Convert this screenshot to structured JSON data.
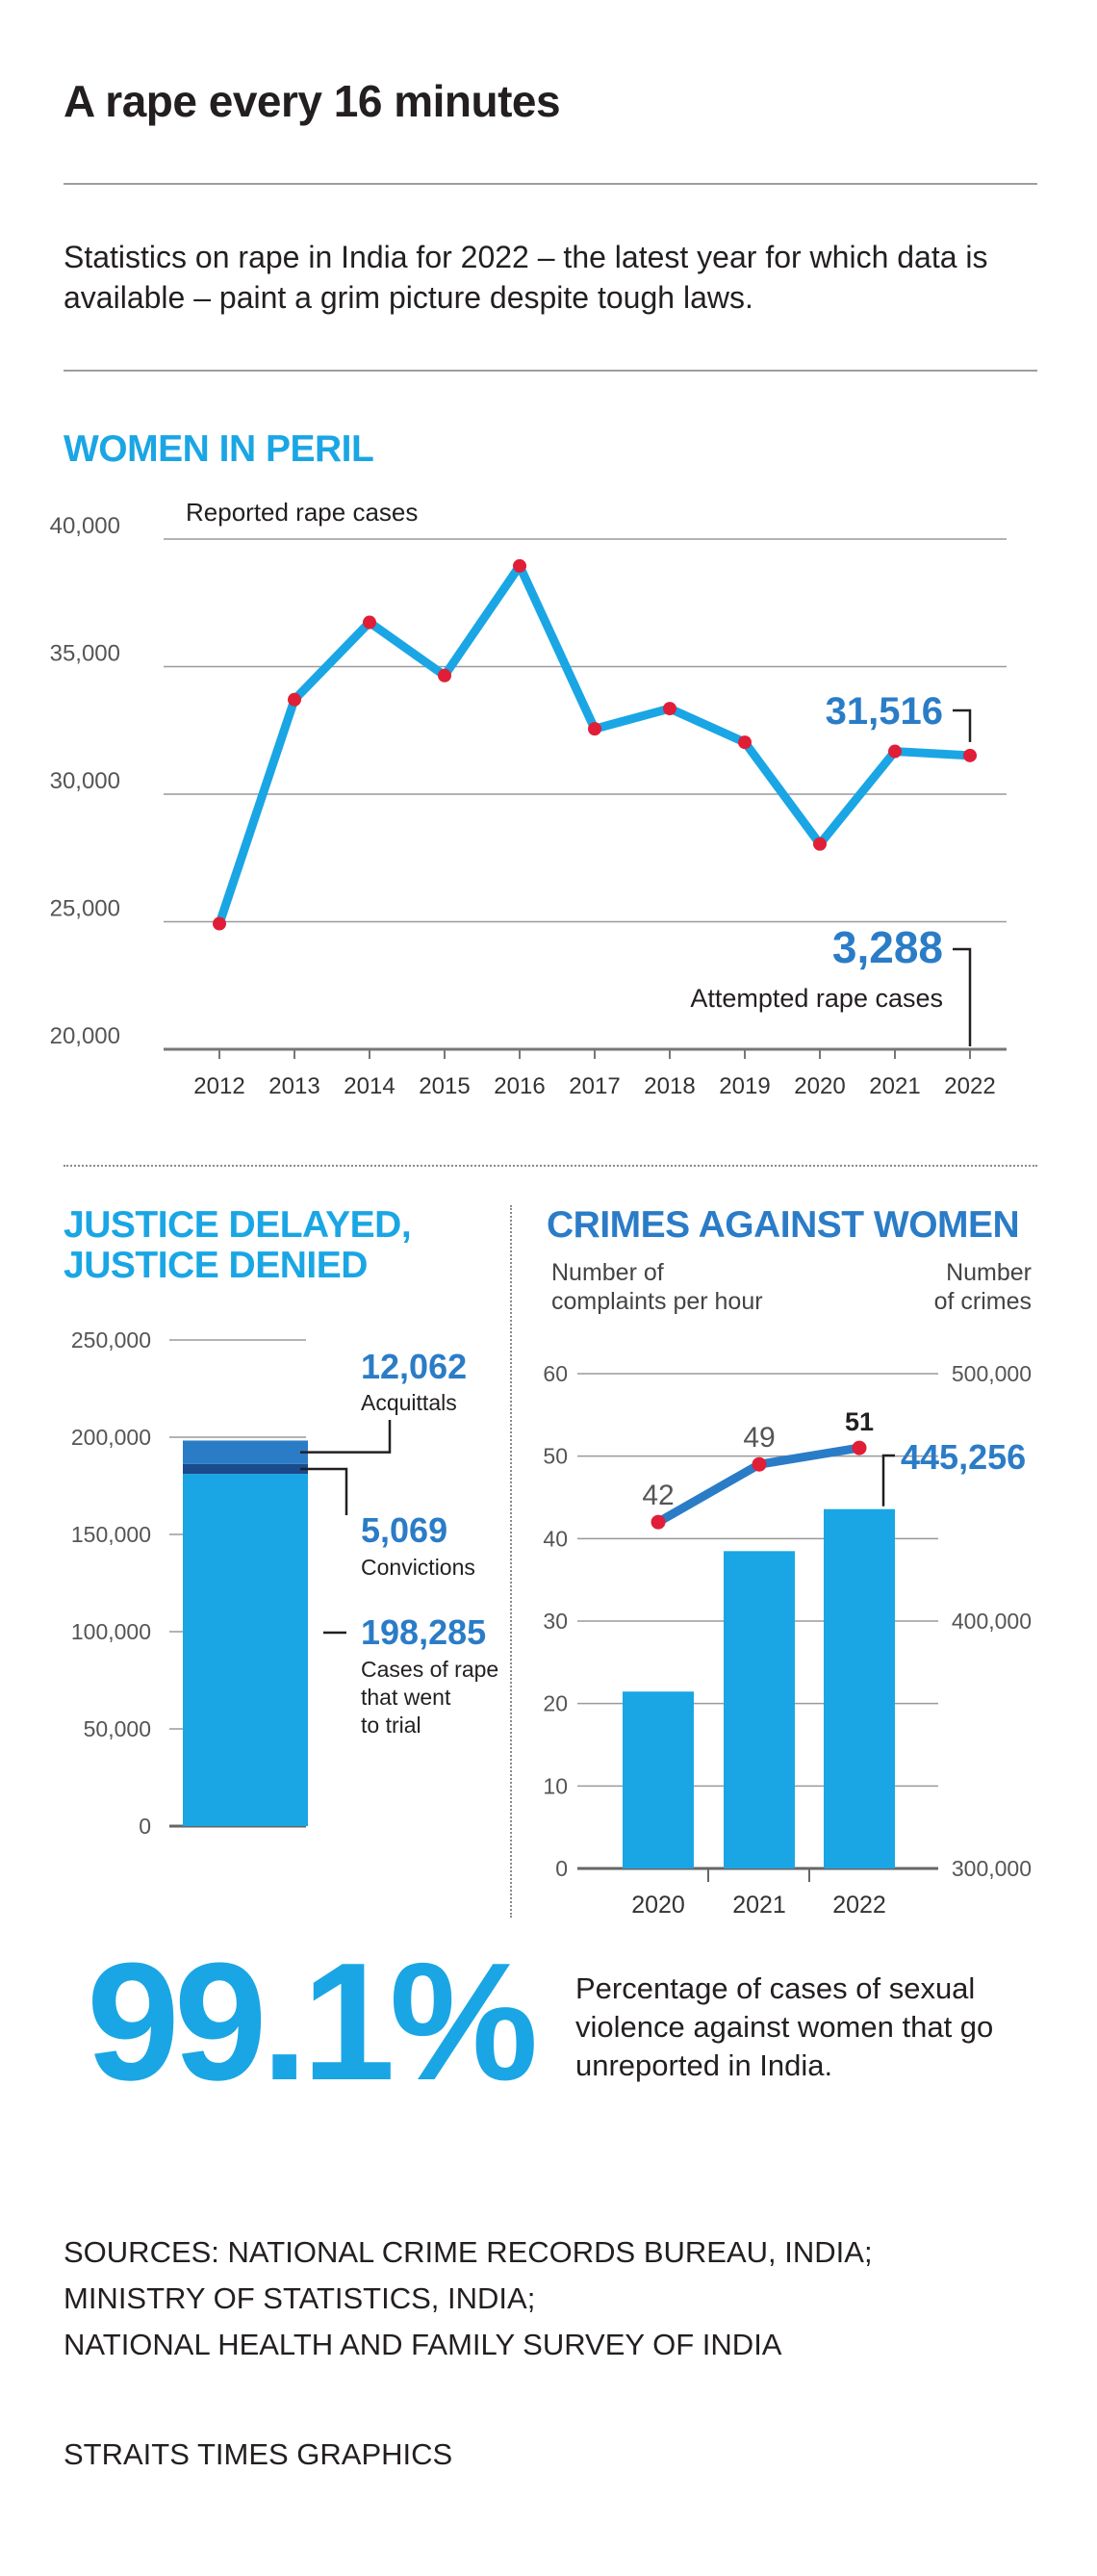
{
  "title": "A rape every 16 minutes",
  "intro": "Statistics on rape in India for 2022 – the latest year for which data is available – paint a grim picture despite tough laws.",
  "section1": {
    "heading": "WOMEN IN PERIL"
  },
  "section2": {
    "heading_line1": "JUSTICE DELAYED,",
    "heading_line2": "JUSTICE DENIED"
  },
  "section3": {
    "heading": "CRIMES AGAINST WOMEN"
  },
  "big_stat": {
    "value": "99.1%",
    "text": "Percentage of cases of sexual violence against women that go unreported in India."
  },
  "sources": [
    "SOURCES: NATIONAL CRIME RECORDS BUREAU, INDIA;",
    "MINISTRY OF STATISTICS, INDIA;",
    "NATIONAL HEALTH AND FAMILY SURVEY OF INDIA"
  ],
  "credit": "STRAITS TIMES GRAPHICS",
  "colors": {
    "accent": "#1aa6e4",
    "dark_blue": "#2b7cc7",
    "navy": "#1a4b8c",
    "point": "#e01e37",
    "text": "#231f20"
  },
  "chart_data": [
    {
      "type": "line",
      "title": "WOMEN IN PERIL",
      "ylabel": "Reported rape cases",
      "x": [
        "2012",
        "2013",
        "2014",
        "2015",
        "2016",
        "2017",
        "2018",
        "2019",
        "2020",
        "2021",
        "2022"
      ],
      "values": [
        24923,
        33707,
        36735,
        34651,
        38947,
        32559,
        33356,
        32033,
        28046,
        31677,
        31516
      ],
      "ylim": [
        20000,
        40000
      ],
      "yticks": [
        20000,
        25000,
        30000,
        35000,
        40000
      ],
      "ytick_labels": [
        "20,000",
        "25,000",
        "30,000",
        "35,000",
        "40,000"
      ],
      "annotations": [
        {
          "label": "31,516",
          "x": "2022"
        },
        {
          "label": "3,288",
          "sublabel": "Attempted rape cases",
          "x": "2022"
        }
      ]
    },
    {
      "type": "bar",
      "title": "JUSTICE DELAYED, JUSTICE DENIED",
      "stacked": true,
      "ylim": [
        0,
        250000
      ],
      "yticks": [
        0,
        50000,
        100000,
        150000,
        200000,
        250000
      ],
      "ytick_labels": [
        "0",
        "50,000",
        "100,000",
        "150,000",
        "200,000",
        "250,000"
      ],
      "series": [
        {
          "name": "Cases of rape that went to trial",
          "value": 198285,
          "label": "198,285"
        },
        {
          "name": "Acquittals",
          "value": 12062,
          "label": "12,062"
        },
        {
          "name": "Convictions",
          "value": 5069,
          "label": "5,069"
        }
      ],
      "label_lines": {
        "acquittals": [
          "Acquittals"
        ],
        "convictions": [
          "Convictions"
        ],
        "trial": [
          "Cases of rape",
          "that went",
          "to trial"
        ]
      }
    },
    {
      "type": "bar",
      "title": "CRIMES AGAINST WOMEN",
      "categories": [
        "2020",
        "2021",
        "2022"
      ],
      "left_axis_title": [
        "Number of",
        "complaints per hour"
      ],
      "right_axis_title": [
        "Number",
        "of crimes"
      ],
      "left_ylim": [
        0,
        60
      ],
      "left_yticks": [
        0,
        10,
        20,
        30,
        40,
        50,
        60
      ],
      "right_ylim": [
        300000,
        500000
      ],
      "right_yticks": [
        300000,
        400000,
        500000
      ],
      "right_ytick_labels": [
        "300,000",
        "400,000",
        "500,000"
      ],
      "series": [
        {
          "name": "Number of crimes",
          "kind": "bar",
          "axis": "right",
          "values": [
            371503,
            428278,
            445256
          ]
        },
        {
          "name": "Number of complaints per hour",
          "kind": "line",
          "axis": "left",
          "values": [
            42,
            49,
            51
          ]
        }
      ],
      "annotations": [
        {
          "label": "445,256",
          "x": "2022"
        }
      ]
    }
  ]
}
